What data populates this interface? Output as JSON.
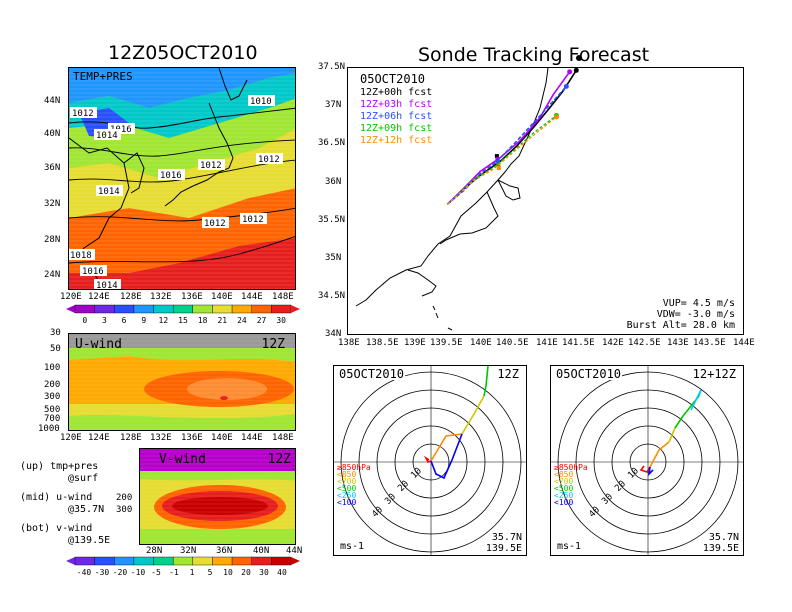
{
  "left": {
    "title": "12Z05OCT2010",
    "map_label": "TEMP+PRES",
    "isobar_labels": [
      "1010",
      "1012",
      "1016",
      "1014",
      "1012",
      "1012",
      "1016",
      "1014",
      "1012",
      "1012",
      "1018",
      "1016",
      "1014"
    ],
    "colorbar_ticks": [
      "0",
      "3",
      "6",
      "9",
      "12",
      "15",
      "18",
      "21",
      "24",
      "27",
      "30"
    ],
    "colorbar_colors": [
      "#a000c8",
      "#6e28e6",
      "#2850ff",
      "#1e96ff",
      "#00c8c8",
      "#00d28c",
      "#a0e632",
      "#e6dc32",
      "#ffaa00",
      "#ff6400",
      "#e61e1e"
    ],
    "uwind_label": "U-wind",
    "uwind_time": "12Z",
    "vwind_label": "V-wind",
    "vwind_time": "12Z",
    "legend_up": "(up) tmp+pres",
    "legend_up2": "@surf",
    "legend_mid": "(mid) u-wind",
    "legend_mid2": "@35.7N",
    "legend_bot": "(bot) v-wind",
    "legend_bot2": "@139.5E",
    "wind_colorbar_ticks": [
      "-40",
      "-30",
      "-20",
      "-10",
      "-5",
      "-1",
      "1",
      "5",
      "10",
      "20",
      "30",
      "40"
    ],
    "wind_colorbar_colors": [
      "#6e28e6",
      "#2850ff",
      "#1e96ff",
      "#00c8c8",
      "#00d28c",
      "#a0e632",
      "#e6dc32",
      "#ffaa00",
      "#ff6400",
      "#e61e1e",
      "#c80000"
    ]
  },
  "right": {
    "title": "Sonde Tracking Forecast",
    "date": "05OCT2010",
    "forecasts": [
      {
        "label": "12Z+00h  fcst",
        "color": "#000000"
      },
      {
        "label": "12Z+03h  fcst",
        "color": "#b400ff"
      },
      {
        "label": "12Z+06h  fcst",
        "color": "#2850ff"
      },
      {
        "label": "12Z+09h  fcst",
        "color": "#00c800"
      },
      {
        "label": "12Z+12h  fcst",
        "color": "#ff8c00"
      }
    ],
    "vup": "VUP=  4.5  m/s",
    "vdw": "VDW= -3.0  m/s",
    "burst": "Burst Alt=  28.0  km",
    "hodo1_date": "05OCT2010",
    "hodo1_time": "12Z",
    "hodo2_date": "05OCT2010",
    "hodo2_time": "12+12Z",
    "hodo_pressure_legend": [
      "≥850hPa",
      "<850",
      "<700",
      "<500",
      "<250",
      "<100"
    ],
    "hodo_pressure_colors": [
      "#ff0000",
      "#ff8c00",
      "#c8c800",
      "#00c800",
      "#00c8ff",
      "#0000ff"
    ],
    "hodo_ring_labels": [
      "10",
      "20",
      "30",
      "40"
    ],
    "hodo_loc1": "35.7N",
    "hodo_loc2": "139.5E",
    "hodo_units": "ms-1"
  },
  "chart_data": [
    {
      "type": "heatmap",
      "title": "12Z05OCT2010",
      "annotation": "TEMP+PRES",
      "x_ticks": [
        "120E",
        "124E",
        "128E",
        "132E",
        "136E",
        "140E",
        "144E",
        "148E"
      ],
      "y_ticks": [
        "24N",
        "28N",
        "32N",
        "36N",
        "40N",
        "44N"
      ],
      "colorbar": [
        0,
        3,
        6,
        9,
        12,
        15,
        18,
        21,
        24,
        27,
        30
      ],
      "contour_labels": [
        1010,
        1012,
        1016,
        1014,
        1012,
        1012,
        1016,
        1014,
        1012,
        1012,
        1018,
        1016,
        1014
      ]
    },
    {
      "type": "heatmap",
      "title": "U-wind",
      "annotation": "12Z",
      "x_ticks": [
        "120E",
        "124E",
        "128E",
        "132E",
        "136E",
        "140E",
        "144E",
        "148E"
      ],
      "y_ticks": [
        "30",
        "50",
        "100",
        "200",
        "300",
        "500",
        "700",
        "1000"
      ]
    },
    {
      "type": "heatmap",
      "title": "V-wind",
      "annotation": "12Z",
      "x_ticks": [
        "28N",
        "32N",
        "36N",
        "40N",
        "44N"
      ],
      "y_ticks": [
        "30",
        "50",
        "100",
        "200",
        "300",
        "500",
        "700",
        "1000"
      ],
      "colorbar": [
        -40,
        -30,
        -20,
        -10,
        -5,
        -1,
        1,
        5,
        10,
        20,
        30,
        40
      ]
    },
    {
      "type": "line",
      "title": "Sonde Tracking Forecast",
      "x_ticks": [
        "138E",
        "138.5E",
        "139E",
        "139.5E",
        "140E",
        "140.5E",
        "141E",
        "141.5E",
        "142E",
        "142.5E",
        "143E",
        "143.5E",
        "144E"
      ],
      "y_ticks": [
        "34N",
        "34.5N",
        "35N",
        "35.5N",
        "36N",
        "36.5N",
        "37N",
        "37.5N"
      ],
      "xlim": [
        138,
        144
      ],
      "ylim": [
        34,
        37.5
      ],
      "series": [
        {
          "name": "12Z+00h  fcst",
          "x": [
            139.5,
            139.75,
            140.0,
            140.3,
            140.55,
            140.8,
            141.05,
            141.25,
            141.45
          ],
          "y": [
            35.72,
            35.92,
            36.1,
            36.28,
            36.48,
            36.72,
            36.98,
            37.2,
            37.47
          ]
        },
        {
          "name": "12Z+03h  fcst",
          "x": [
            139.5,
            139.75,
            140.0,
            140.3,
            140.6,
            140.9,
            141.1,
            141.35
          ],
          "y": [
            35.72,
            35.93,
            36.15,
            36.33,
            36.55,
            36.85,
            37.15,
            37.45
          ]
        },
        {
          "name": "12Z+06h  fcst",
          "x": [
            139.5,
            139.75,
            140.0,
            140.25,
            140.5,
            140.8,
            141.05,
            141.3
          ],
          "y": [
            35.72,
            35.9,
            36.12,
            36.28,
            36.5,
            36.78,
            37.02,
            37.26
          ]
        },
        {
          "name": "12Z+09h  fcst",
          "x": [
            139.5,
            139.7,
            139.9,
            140.2,
            140.5,
            140.8,
            141.15
          ],
          "y": [
            35.72,
            35.88,
            36.05,
            36.2,
            36.42,
            36.65,
            36.88
          ]
        },
        {
          "name": "12Z+12h  fcst",
          "x": [
            139.5,
            139.7,
            139.9,
            140.2,
            140.5,
            140.8,
            141.15
          ],
          "y": [
            35.72,
            35.87,
            36.03,
            36.18,
            36.4,
            36.62,
            36.86
          ]
        }
      ],
      "annotations": [
        "VUP=  4.5  m/s",
        "VDW= -3.0  m/s",
        "Burst Alt=  28.0  km"
      ]
    }
  ]
}
